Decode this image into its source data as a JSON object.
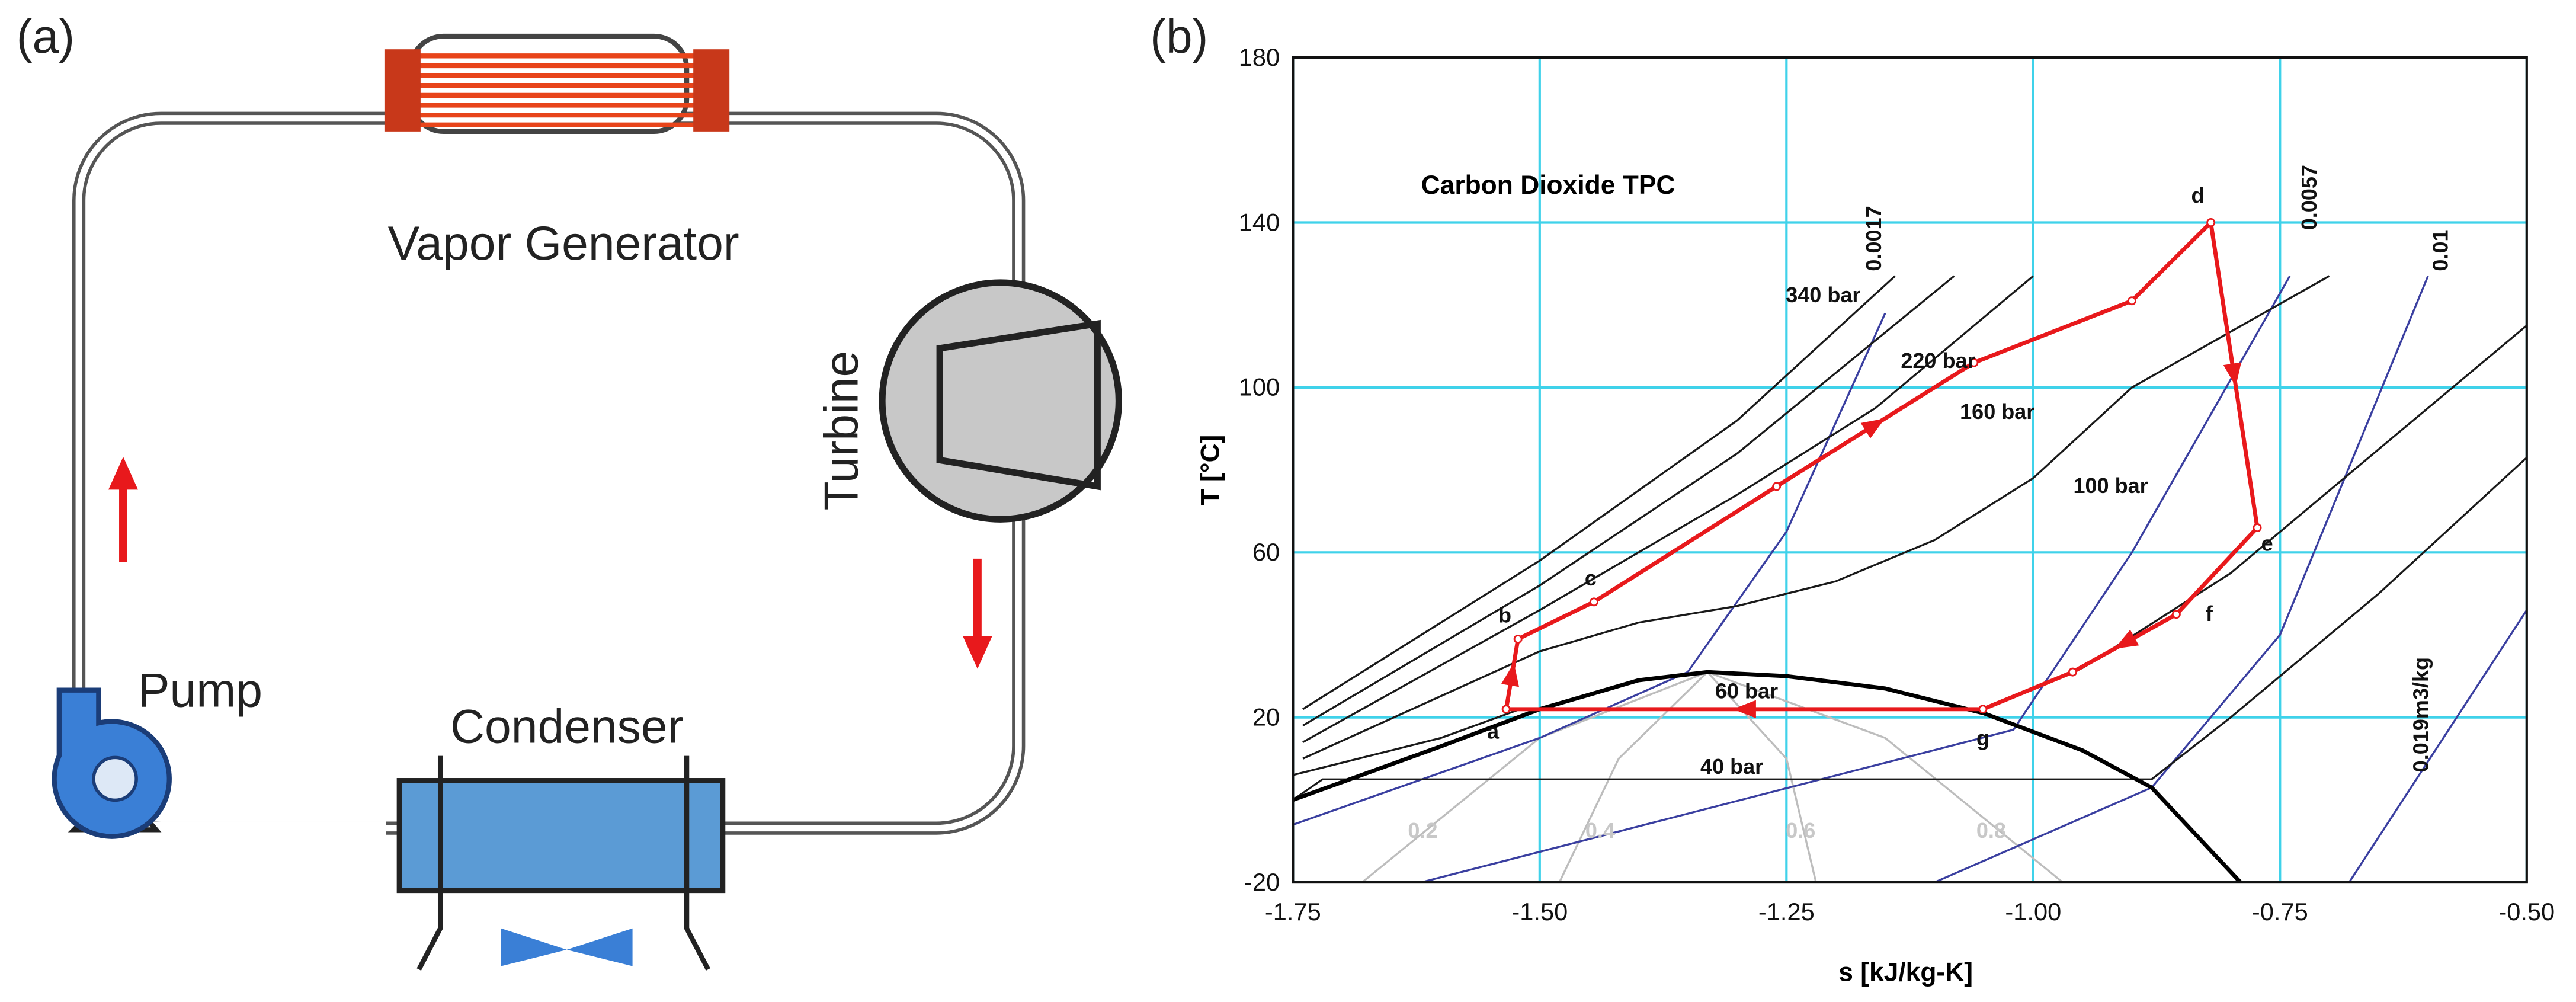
{
  "panel_a": {
    "panel_label": "(a)",
    "vapor_generator": "Vapor Generator",
    "turbine": "Turbine",
    "pump": "Pump",
    "condenser": "Condenser"
  },
  "chart_data": {
    "type": "line",
    "panel_label": "(b)",
    "title": "Carbon Dioxide TPC",
    "x_label": "s [kJ/kg-K]",
    "y_label": "T [°C]",
    "xlim": [
      -1.75,
      -0.5
    ],
    "ylim": [
      -20,
      180
    ],
    "xticks": [
      -1.75,
      {
        "value": -1.5,
        "label": "-1.50"
      },
      -1.25,
      {
        "value": -1,
        "label": "-1.00"
      },
      -0.75,
      {
        "value": -0.5,
        "label": "-0.50"
      }
    ],
    "yticks": [
      -20,
      20,
      60,
      100,
      140,
      180
    ],
    "grid": true,
    "grid_color": "#3fd2ea",
    "series": [
      {
        "color": "#e8191c",
        "x": [
          -1.534,
          -1.522,
          -1.445,
          -1.26,
          -1.06,
          -0.9,
          -0.82,
          -0.773,
          -0.855,
          -0.96,
          -1.051,
          -1.534
        ],
        "values": [
          22,
          39,
          48,
          76,
          106,
          121,
          140,
          66,
          45,
          31,
          22,
          22
        ]
      }
    ],
    "states": {
      "labels": [
        "a",
        "b",
        "c",
        "d",
        "e",
        "f",
        "g"
      ],
      "x": [
        -1.534,
        -1.522,
        -1.445,
        -0.82,
        -0.773,
        -0.855,
        -1.051
      ],
      "y": [
        22,
        39,
        48,
        140,
        66,
        45,
        22
      ]
    },
    "saturation_line": {
      "color": "#000000",
      "x": [
        -1.75,
        -1.6,
        -1.5,
        -1.4,
        -1.33,
        -1.25,
        -1.15,
        -1.05,
        -0.95,
        -0.88,
        -0.79
      ],
      "values": [
        0,
        13,
        22,
        29,
        31,
        30,
        27,
        21,
        12,
        3,
        -20
      ]
    },
    "isobars": {
      "color": "#1a1a1a",
      "lines": [
        {
          "label": "340 bar",
          "x": [
            -1.74,
            -1.5,
            -1.3,
            -1.14
          ],
          "values": [
            22,
            58,
            92,
            127
          ]
        },
        {
          "label": "220 bar",
          "x": [
            -1.74,
            -1.5,
            -1.3,
            -1.08
          ],
          "values": [
            18,
            52,
            84,
            127
          ]
        },
        {
          "label": "160 bar",
          "x": [
            -1.74,
            -1.5,
            -1.3,
            -1.16,
            -1.0
          ],
          "values": [
            14,
            46,
            74,
            95,
            127
          ]
        },
        {
          "label": "100 bar",
          "x": [
            -1.74,
            -1.5,
            -1.4,
            -1.3,
            -1.2,
            -1.1,
            -1.0,
            -0.9,
            -0.7
          ],
          "values": [
            10,
            36,
            43,
            47,
            53,
            63,
            78,
            100,
            127
          ]
        },
        {
          "label": "60 bar",
          "x": [
            -1.75,
            -1.6,
            -1.52,
            -1.05,
            -0.95,
            -0.8,
            -0.65,
            -0.5
          ],
          "values": [
            6,
            15,
            22,
            22,
            32,
            55,
            85,
            115
          ]
        },
        {
          "label": "40 bar",
          "x": [
            -1.75,
            -1.72,
            -0.88,
            -0.8,
            -0.65,
            -0.5
          ],
          "values": [
            0,
            5,
            5,
            20,
            50,
            83
          ]
        }
      ]
    },
    "isochores": {
      "color": "#3a3fa0",
      "lines": [
        {
          "label": "0.0017",
          "x": [
            -1.75,
            -1.5,
            -1.35,
            -1.25,
            -1.15
          ],
          "values": [
            -6,
            15,
            31,
            65,
            118
          ]
        },
        {
          "label": "0.0057",
          "x": [
            -1.62,
            -1.02,
            -0.9,
            -0.74
          ],
          "values": [
            -20,
            17,
            60,
            127
          ]
        },
        {
          "label": "0.01",
          "x": [
            -1.1,
            -0.88,
            -0.75,
            -0.6
          ],
          "values": [
            -20,
            3,
            40,
            127
          ]
        },
        {
          "label": "0.019m3/kg",
          "x": [
            -0.68,
            -0.5
          ],
          "values": [
            -20,
            46
          ]
        }
      ]
    },
    "quality_lines": {
      "color": "#bdbdbd",
      "lines": [
        {
          "label": "0.2",
          "x": [
            -1.33,
            -1.5,
            -1.68
          ],
          "values": [
            31,
            15,
            -20
          ]
        },
        {
          "label": "0.4",
          "x": [
            -1.33,
            -1.42,
            -1.48
          ],
          "values": [
            31,
            10,
            -20
          ]
        },
        {
          "label": "0.6",
          "x": [
            -1.33,
            -1.25,
            -1.22
          ],
          "values": [
            31,
            10,
            -20
          ]
        },
        {
          "label": "0.8",
          "x": [
            -1.33,
            -1.15,
            -0.97
          ],
          "values": [
            31,
            15,
            -20
          ]
        }
      ]
    }
  }
}
